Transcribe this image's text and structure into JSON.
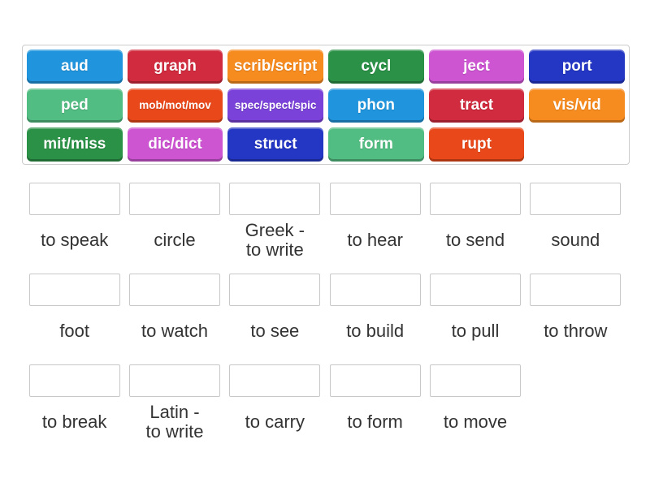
{
  "palette": {
    "blue": "#2095dd",
    "red": "#d02b3e",
    "orange": "#f68b1f",
    "dark_green": "#2b9147",
    "orchid": "#cd55d2",
    "royal_blue": "#2336c4",
    "sea_green": "#52bd82",
    "orange_red": "#e8481a",
    "purple": "#7a42d8",
    "dropzone_border": "#c8c8c8",
    "label_text": "#333333",
    "tile_text": "#ffffff"
  },
  "tile_bank": {
    "tiles": [
      {
        "label": "aud",
        "color": "blue"
      },
      {
        "label": "graph",
        "color": "red"
      },
      {
        "label": "scrib/script",
        "color": "orange"
      },
      {
        "label": "cycl",
        "color": "dark_green"
      },
      {
        "label": "ject",
        "color": "orchid"
      },
      {
        "label": "port",
        "color": "royal_blue"
      },
      {
        "label": "ped",
        "color": "sea_green"
      },
      {
        "label": "mob/mot/mov",
        "color": "orange_red"
      },
      {
        "label": "spec/spect/spic",
        "color": "purple"
      },
      {
        "label": "phon",
        "color": "blue"
      },
      {
        "label": "tract",
        "color": "red"
      },
      {
        "label": "vis/vid",
        "color": "orange"
      },
      {
        "label": "mit/miss",
        "color": "dark_green"
      },
      {
        "label": "dic/dict",
        "color": "orchid"
      },
      {
        "label": "struct",
        "color": "royal_blue"
      },
      {
        "label": "form",
        "color": "sea_green"
      },
      {
        "label": "rupt",
        "color": "orange_red"
      }
    ]
  },
  "answers": {
    "items": [
      {
        "label": "to speak"
      },
      {
        "label": "circle"
      },
      {
        "label": "Greek -\nto write"
      },
      {
        "label": "to hear"
      },
      {
        "label": "to send"
      },
      {
        "label": "sound"
      },
      {
        "label": "foot"
      },
      {
        "label": "to watch"
      },
      {
        "label": "to see"
      },
      {
        "label": "to build"
      },
      {
        "label": "to pull"
      },
      {
        "label": "to throw"
      },
      {
        "label": "to break"
      },
      {
        "label": "Latin -\nto write"
      },
      {
        "label": "to carry"
      },
      {
        "label": "to form"
      },
      {
        "label": "to move"
      }
    ]
  }
}
